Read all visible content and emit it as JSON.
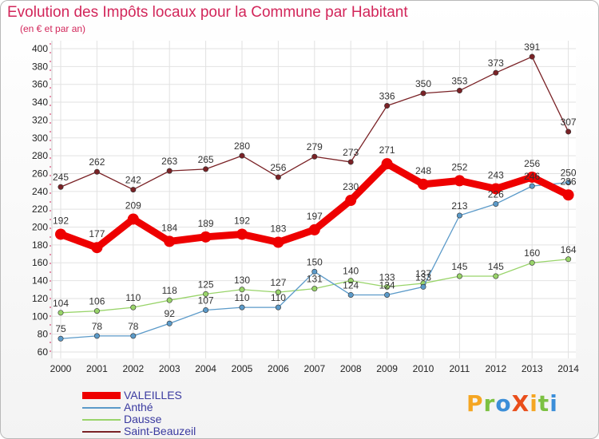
{
  "title": "Evolution des Impôts locaux pour la Commune par Habitant",
  "subtitle": "(en € et par an)",
  "logo": {
    "text": "ProXiti",
    "letters": [
      "P",
      "r",
      "o",
      "X",
      "i",
      "t",
      "i"
    ],
    "colors": [
      "#f5a623",
      "#7cc142",
      "#3b8ed8",
      "#e94e1b",
      "#f5a623",
      "#7cc142",
      "#3b8ed8"
    ]
  },
  "chart_data": {
    "type": "line",
    "title": "Evolution des Impôts locaux pour la Commune par Habitant",
    "subtitle": "(en € et par an)",
    "x": [
      "2000",
      "2001",
      "2002",
      "2003",
      "2004",
      "2005",
      "2006",
      "2007",
      "2008",
      "2009",
      "2010",
      "2011",
      "2012",
      "2013",
      "2014"
    ],
    "yticks": [
      60,
      80,
      100,
      120,
      140,
      160,
      180,
      200,
      220,
      240,
      260,
      280,
      300,
      320,
      340,
      360,
      380,
      400
    ],
    "ylim": [
      60,
      400
    ],
    "grid": true,
    "legend_position": "bottom-left",
    "series": [
      {
        "name": "Saint-Beauzeil",
        "color": "#7a2226",
        "values": [
          245,
          262,
          242,
          263,
          265,
          280,
          256,
          279,
          273,
          336,
          350,
          353,
          373,
          391,
          307
        ]
      },
      {
        "name": "Dausse",
        "color": "#99d46a",
        "values": [
          104,
          106,
          110,
          118,
          125,
          130,
          127,
          131,
          140,
          133,
          137,
          145,
          145,
          160,
          164
        ]
      },
      {
        "name": "Anthé",
        "color": "#5b9ac9",
        "values": [
          75,
          78,
          78,
          92,
          107,
          110,
          110,
          150,
          124,
          124,
          133,
          213,
          226,
          246,
          250
        ]
      },
      {
        "name": "VALEILLES",
        "color": "#ee0000",
        "values": [
          192,
          177,
          209,
          184,
          189,
          192,
          183,
          197,
          230,
          271,
          248,
          252,
          243,
          256,
          236
        ]
      }
    ]
  }
}
